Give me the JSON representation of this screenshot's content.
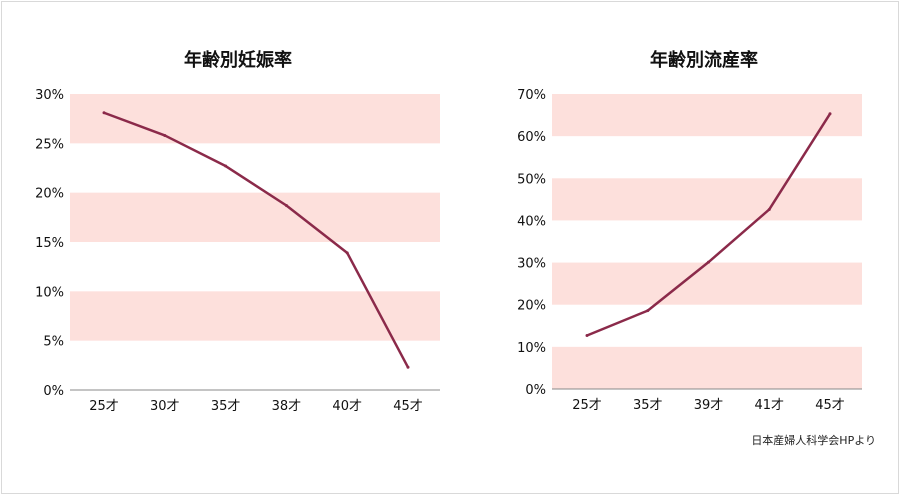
{
  "source_note": "日本産婦人科学会HPより",
  "colors": {
    "band": "#fde0dc",
    "line": "#8b2a4a",
    "axis": "#888888"
  },
  "chart_data": [
    {
      "type": "line",
      "title": "年齢別妊娠率",
      "categories": [
        "25才",
        "30才",
        "35才",
        "38才",
        "40才",
        "45才"
      ],
      "values": [
        28.1,
        25.8,
        22.7,
        18.7,
        13.9,
        2.3
      ],
      "yticks": [
        "0%",
        "5%",
        "10%",
        "15%",
        "20%",
        "25%",
        "30%"
      ],
      "ylim": [
        0,
        30
      ],
      "ystep": 5,
      "grid": "alternating shaded bands"
    },
    {
      "type": "line",
      "title": "年齢別流産率",
      "categories": [
        "25才",
        "35才",
        "39才",
        "41才",
        "45才"
      ],
      "values": [
        12.7,
        18.6,
        30.1,
        42.6,
        65.3
      ],
      "yticks": [
        "0%",
        "10%",
        "20%",
        "30%",
        "40%",
        "50%",
        "60%",
        "70%"
      ],
      "ylim": [
        0,
        70
      ],
      "ystep": 10,
      "grid": "alternating shaded bands"
    }
  ]
}
